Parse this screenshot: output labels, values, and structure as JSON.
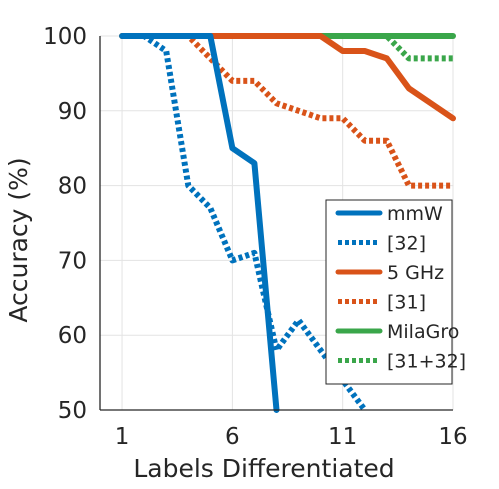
{
  "chart_data": {
    "type": "line",
    "title": "",
    "xlabel": "Labels Differentiated",
    "ylabel": "Accuracy (%)",
    "xlim": [
      0,
      16
    ],
    "ylim": [
      50,
      100
    ],
    "xticks": [
      1,
      6,
      11,
      16
    ],
    "yticks": [
      50,
      60,
      70,
      80,
      90,
      100
    ],
    "grid": true,
    "legend_position": "bottom-right",
    "series": [
      {
        "name": "mmW",
        "color": "#0072BD",
        "line_style": "solid",
        "x": [
          1,
          2,
          3,
          4,
          5,
          6,
          7,
          8
        ],
        "y": [
          100,
          100,
          100,
          100,
          100,
          85,
          83,
          45
        ]
      },
      {
        "name": "[32]",
        "color": "#0072BD",
        "line_style": "dotted",
        "x": [
          1,
          2,
          3,
          4,
          5,
          6,
          7,
          8,
          9,
          10,
          11,
          12
        ],
        "y": [
          100,
          100,
          98,
          80,
          77,
          70,
          71,
          58,
          62,
          58,
          54,
          50
        ]
      },
      {
        "name": "5 GHz",
        "color": "#D95319",
        "line_style": "solid",
        "x": [
          1,
          2,
          3,
          4,
          5,
          6,
          7,
          8,
          9,
          10,
          11,
          12,
          13,
          14,
          15,
          16
        ],
        "y": [
          100,
          100,
          100,
          100,
          100,
          100,
          100,
          100,
          100,
          100,
          98,
          98,
          97,
          93,
          91,
          89
        ]
      },
      {
        "name": "[31]",
        "color": "#D95319",
        "line_style": "dotted",
        "x": [
          1,
          2,
          3,
          4,
          5,
          6,
          7,
          8,
          9,
          10,
          11,
          12,
          13,
          14,
          15,
          16
        ],
        "y": [
          100,
          100,
          100,
          100,
          97,
          94,
          94,
          91,
          90,
          89,
          89,
          86,
          86,
          80,
          80,
          80
        ]
      },
      {
        "name": "MilaGro",
        "color": "#3AA64A",
        "line_style": "solid",
        "x": [
          1,
          2,
          3,
          4,
          5,
          6,
          7,
          8,
          9,
          10,
          11,
          12,
          13,
          14,
          15,
          16
        ],
        "y": [
          100,
          100,
          100,
          100,
          100,
          100,
          100,
          100,
          100,
          100,
          100,
          100,
          100,
          100,
          100,
          100
        ]
      },
      {
        "name": "[31+32]",
        "color": "#3AA64A",
        "line_style": "dotted",
        "x": [
          1,
          2,
          3,
          4,
          5,
          6,
          7,
          8,
          9,
          10,
          11,
          12,
          13,
          14,
          15,
          16
        ],
        "y": [
          100,
          100,
          100,
          100,
          100,
          100,
          100,
          100,
          100,
          100,
          100,
          100,
          100,
          97,
          97,
          97
        ]
      }
    ]
  }
}
